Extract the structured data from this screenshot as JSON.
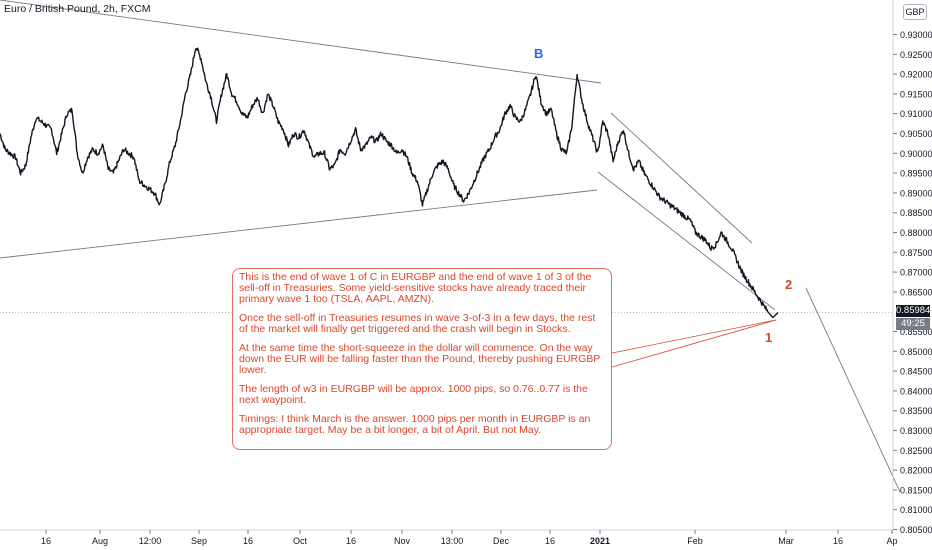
{
  "header": {
    "title": "Euro / British Pound, 2h, FXCM",
    "currency": "GBP"
  },
  "price_labels": {
    "last_price": "0.85984",
    "countdown": "49:25"
  },
  "colors": {
    "price_line": "#131722",
    "trend_lines": "#787b86",
    "annotation": "#d9472b",
    "wave_b": "#2962ff",
    "last_price_badge": "#131722",
    "countdown_badge": "#787b86"
  },
  "annotation": {
    "paragraphs": [
      "This is the end of wave 1 of C in EURGBP and the end of wave 1 of 3 of the sell-off in Treasuries. Some yield-sensitive stocks have already traced their primary wave 1 too (TSLA, AAPL, AMZN).",
      "Once the sell-off in Treasuries resumes in wave 3-of-3 in a few days, the rest of the market will finally get triggered and the crash will begin in Stocks.",
      "At the same time the short-squeeze in the dollar will commence. On the way down the EUR will be falling faster than the Pound, thereby pushing EURGBP lower.",
      "The length of w3 in EURGBP will be approx. 1000 pips, so 0.76..0.77 is the next waypoint.",
      "Timings: I think March is the answer. 1000 pips per month in EURGBP is an appropriate target. May be a bit longer, a bit of April. But not May."
    ]
  },
  "wave_labels": {
    "b": "B",
    "one": "1",
    "two": "2"
  },
  "chart_data": {
    "type": "line",
    "title": "Euro / British Pound, 2h, FXCM",
    "xlabel": "",
    "ylabel": "",
    "ylim": [
      0.8035,
      0.9375
    ],
    "grid": false,
    "x_ticks": [
      "16",
      "Aug",
      "12:00",
      "Sep",
      "16",
      "Oct",
      "16",
      "Nov",
      "13:00",
      "Dec",
      "16",
      "2021",
      "Feb",
      "Mar",
      "16",
      "Ap"
    ],
    "y_ticks": [
      "0.93000",
      "0.92500",
      "0.92000",
      "0.91500",
      "0.91000",
      "0.90500",
      "0.90000",
      "0.89500",
      "0.89000",
      "0.88500",
      "0.88000",
      "0.87500",
      "0.87000",
      "0.86500",
      "0.85500",
      "0.85000",
      "0.84500",
      "0.84000",
      "0.83500",
      "0.83000",
      "0.82500",
      "0.82000",
      "0.81500",
      "0.81000",
      "0.80500"
    ],
    "series": [
      {
        "values": [
          0.905,
          0.901,
          0.9,
          0.899,
          0.895,
          0.897,
          0.904,
          0.909,
          0.908,
          0.907,
          0.906,
          0.9,
          0.905,
          0.91,
          0.911,
          0.9,
          0.895,
          0.899,
          0.901,
          0.9,
          0.902,
          0.896,
          0.895,
          0.898,
          0.901,
          0.9,
          0.899,
          0.893,
          0.892,
          0.891,
          0.89,
          0.887,
          0.892,
          0.898,
          0.902,
          0.908,
          0.915,
          0.92,
          0.927,
          0.924,
          0.918,
          0.914,
          0.908,
          0.915,
          0.92,
          0.915,
          0.913,
          0.91,
          0.909,
          0.912,
          0.914,
          0.91,
          0.915,
          0.912,
          0.908,
          0.906,
          0.902,
          0.905,
          0.904,
          0.906,
          0.902,
          0.899,
          0.9,
          0.9,
          0.896,
          0.897,
          0.901,
          0.9,
          0.903,
          0.906,
          0.901,
          0.902,
          0.904,
          0.903,
          0.905,
          0.903,
          0.902,
          0.9,
          0.901,
          0.899,
          0.895,
          0.893,
          0.887,
          0.891,
          0.895,
          0.897,
          0.898,
          0.896,
          0.892,
          0.89,
          0.888,
          0.89,
          0.893,
          0.896,
          0.899,
          0.901,
          0.904,
          0.906,
          0.91,
          0.912,
          0.909,
          0.908,
          0.911,
          0.915,
          0.92,
          0.913,
          0.91,
          0.911,
          0.905,
          0.901,
          0.9,
          0.907,
          0.92,
          0.913,
          0.908,
          0.904,
          0.9,
          0.908,
          0.905,
          0.898,
          0.903,
          0.906,
          0.9,
          0.896,
          0.898,
          0.895,
          0.893,
          0.891,
          0.889,
          0.888,
          0.887,
          0.886,
          0.885,
          0.884,
          0.883,
          0.88,
          0.879,
          0.878,
          0.876,
          0.877,
          0.88,
          0.878,
          0.876,
          0.873,
          0.87,
          0.868,
          0.866,
          0.864,
          0.862,
          0.86,
          0.8585,
          0.8598
        ]
      }
    ],
    "projection": [
      {
        "x_label": "Mar",
        "y": 0.8662
      },
      {
        "x_label": "Ap",
        "y": 0.8145
      }
    ]
  }
}
